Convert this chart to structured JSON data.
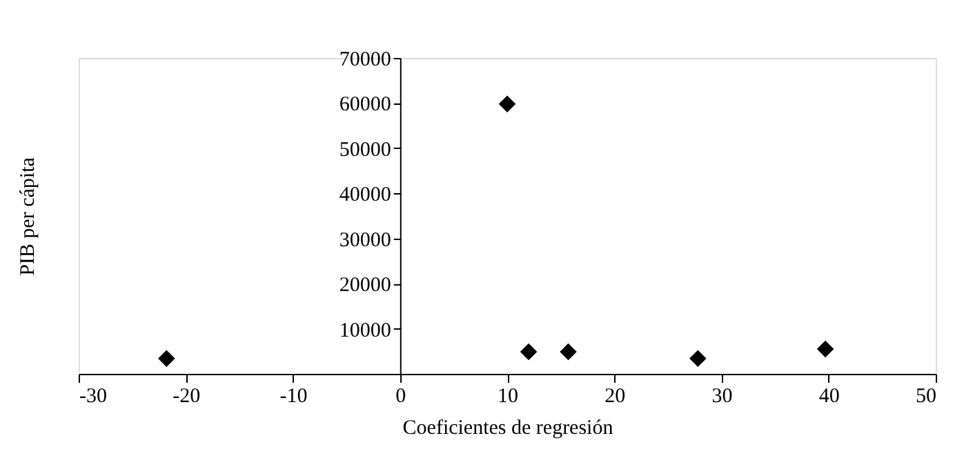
{
  "chart_data": {
    "type": "scatter",
    "xlabel": "Coeficientes de regresión",
    "ylabel": "PIB per cápita",
    "x": [
      -21.8,
      10,
      12,
      15.7,
      27.8,
      39.7
    ],
    "series": [
      {
        "color": "#000000",
        "values": [
          3400,
          59800,
          4900,
          4900,
          3400,
          5500
        ]
      }
    ],
    "xlim": [
      -30,
      50
    ],
    "xticks": [
      -30,
      -20,
      -10,
      0,
      10,
      20,
      30,
      40,
      50
    ],
    "ylim": [
      0,
      70000
    ],
    "yticks": [
      10000,
      20000,
      30000,
      40000,
      50000,
      60000,
      70000
    ],
    "grid": false,
    "legend": false,
    "marker": "diamond"
  }
}
